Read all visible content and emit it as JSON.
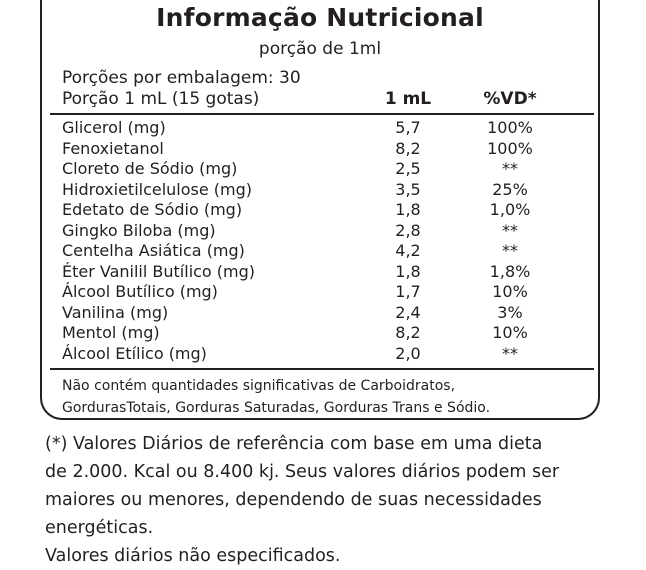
{
  "title": "Informação Nutricional",
  "subtitle": "porção de 1ml",
  "servings_per_package": "Porções por embalagem: 30",
  "header": {
    "portion": "Porção 1 mL (15 gotas)",
    "amount": "1 mL",
    "dv": "%VD*"
  },
  "rows": [
    {
      "name": "Glicerol (mg)",
      "amount": "5,7",
      "dv": "100%"
    },
    {
      "name": "Fenoxietanol",
      "amount": "8,2",
      "dv": "100%"
    },
    {
      "name": "Cloreto de Sódio (mg)",
      "amount": "2,5",
      "dv": "**"
    },
    {
      "name": "Hidroxietilcelulose (mg)",
      "amount": "3,5",
      "dv": "25%"
    },
    {
      "name": "Edetato de Sódio (mg)",
      "amount": "1,8",
      "dv": "1,0%"
    },
    {
      "name": "Gingko Biloba (mg)",
      "amount": "2,8",
      "dv": "**"
    },
    {
      "name": "Centelha Asiática (mg)",
      "amount": "4,2",
      "dv": "**"
    },
    {
      "name": "Éter Vanilil Butílico (mg)",
      "amount": "1,8",
      "dv": "1,8%"
    },
    {
      "name": "Álcool Butílico (mg)",
      "amount": "1,7",
      "dv": "10%"
    },
    {
      "name": "Vanilina (mg)",
      "amount": "2,4",
      "dv": "3%"
    },
    {
      "name": "Mentol (mg)",
      "amount": "8,2",
      "dv": "10%"
    },
    {
      "name": "Álcool Etílico (mg)",
      "amount": "2,0",
      "dv": "**"
    }
  ],
  "note": {
    "line1": "Não contém quantidades significativas de Carboidratos,",
    "line2": "GordurasTotais, Gorduras Saturadas, Gorduras Trans e Sódio."
  },
  "footnote": {
    "line1": "(*) Valores Diários de referência com base em uma dieta",
    "line2": "de 2.000. Kcal ou 8.400 kj. Seus valores diários podem ser",
    "line3": "maiores ou menores, dependendo de suas necessidades",
    "line4": "energéticas.",
    "line5": "Valores diários não especificados."
  }
}
